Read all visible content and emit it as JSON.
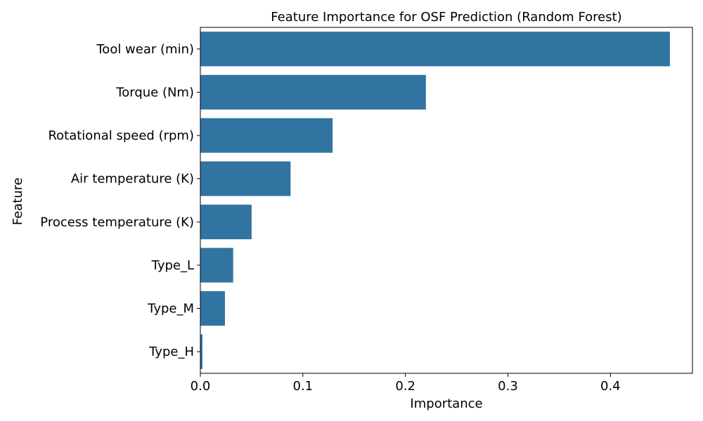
{
  "chart_data": {
    "type": "bar",
    "orientation": "horizontal",
    "title": "Feature Importance for OSF Prediction (Random Forest)",
    "xlabel": "Importance",
    "ylabel": "Feature",
    "categories": [
      "Tool wear (min)",
      "Torque (Nm)",
      "Rotational speed (rpm)",
      "Air temperature (K)",
      "Process temperature (K)",
      "Type_L",
      "Type_M",
      "Type_H"
    ],
    "values": [
      0.458,
      0.22,
      0.129,
      0.088,
      0.05,
      0.032,
      0.024,
      0.002
    ],
    "xlim": [
      0,
      0.48
    ],
    "xticks": [
      0.0,
      0.1,
      0.2,
      0.3,
      0.4
    ],
    "xtick_labels": [
      "0.0",
      "0.1",
      "0.2",
      "0.3",
      "0.4"
    ],
    "bar_color": "#3274a1",
    "grid": false
  }
}
